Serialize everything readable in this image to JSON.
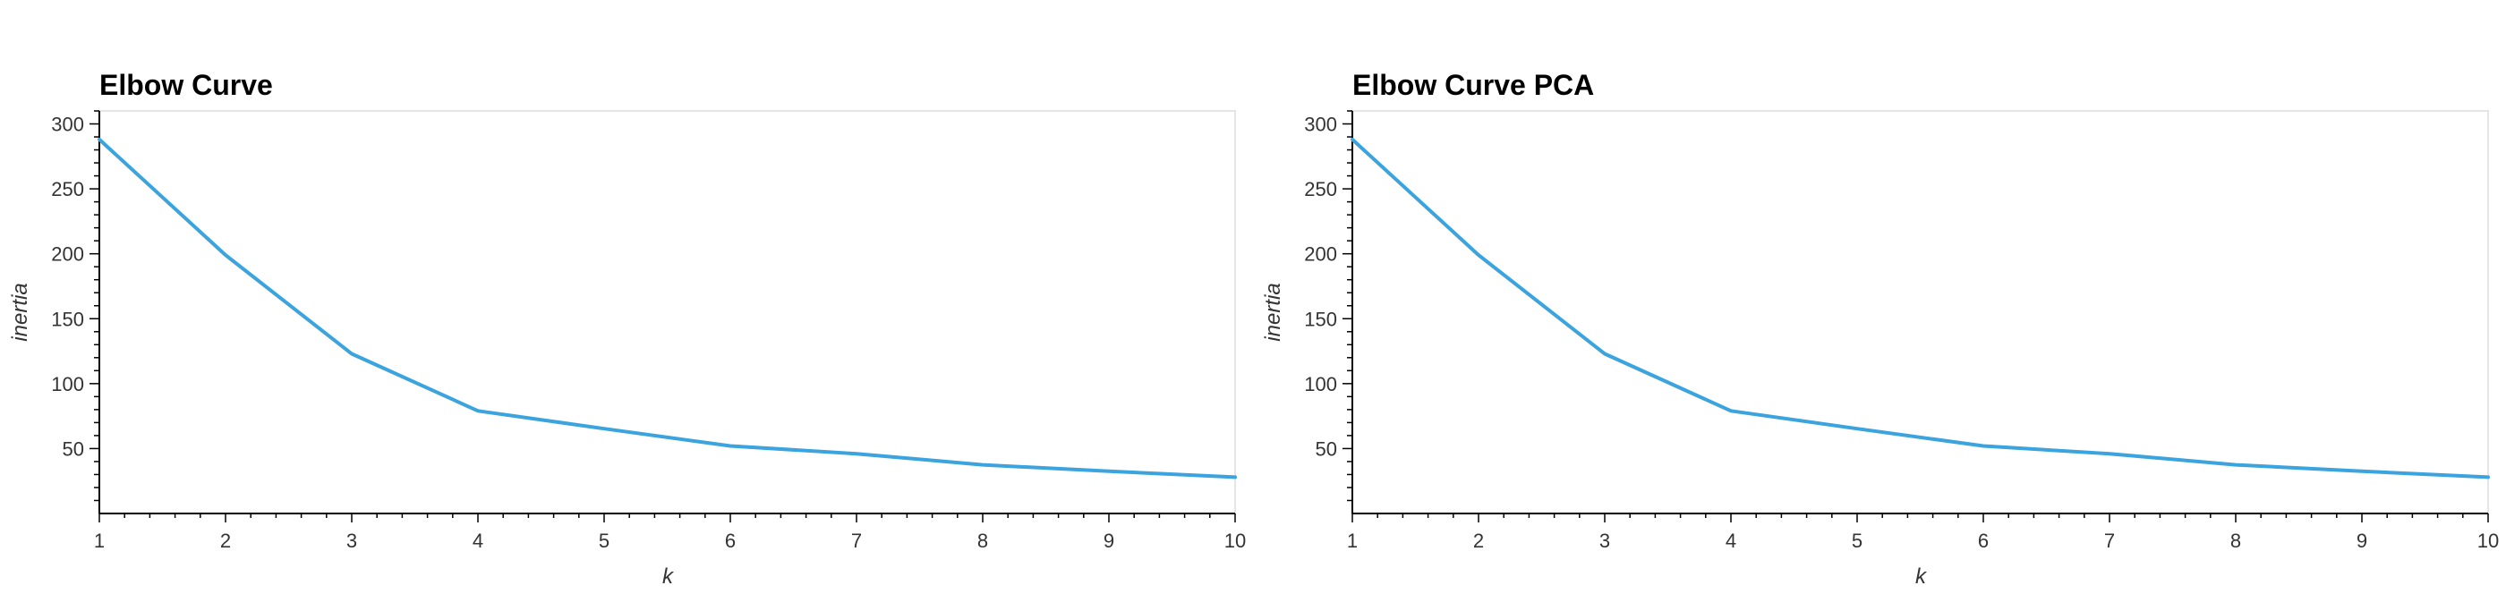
{
  "chart_data": [
    {
      "type": "line",
      "title": "Elbow Curve",
      "xlabel": "k",
      "ylabel": "inertia",
      "x": [
        1,
        2,
        3,
        4,
        5,
        6,
        7,
        8,
        9,
        10
      ],
      "series": [
        {
          "values": [
            288,
            199,
            123,
            79,
            65.3,
            52,
            46,
            37.5,
            32.5,
            28
          ],
          "color": "#3ba3dd"
        }
      ],
      "xlim": [
        1,
        10
      ],
      "ylim": [
        0,
        310
      ],
      "xticks": [
        "1",
        "2",
        "3",
        "4",
        "5",
        "6",
        "7",
        "8",
        "9",
        "10"
      ],
      "yticks": [
        "50",
        "100",
        "150",
        "200",
        "250",
        "300"
      ],
      "grid": false,
      "legend": "none"
    },
    {
      "type": "line",
      "title": "Elbow Curve PCA",
      "xlabel": "k",
      "ylabel": "inertia",
      "x": [
        1,
        2,
        3,
        4,
        5,
        6,
        7,
        8,
        9,
        10
      ],
      "series": [
        {
          "values": [
            288,
            199,
            123,
            79,
            65.3,
            52,
            46,
            37.5,
            32.5,
            28
          ],
          "color": "#3ba3dd"
        }
      ],
      "xlim": [
        1,
        10
      ],
      "ylim": [
        0,
        310
      ],
      "xticks": [
        "1",
        "2",
        "3",
        "4",
        "5",
        "6",
        "7",
        "8",
        "9",
        "10"
      ],
      "yticks": [
        "50",
        "100",
        "150",
        "200",
        "250",
        "300"
      ],
      "grid": false,
      "legend": "none"
    }
  ]
}
